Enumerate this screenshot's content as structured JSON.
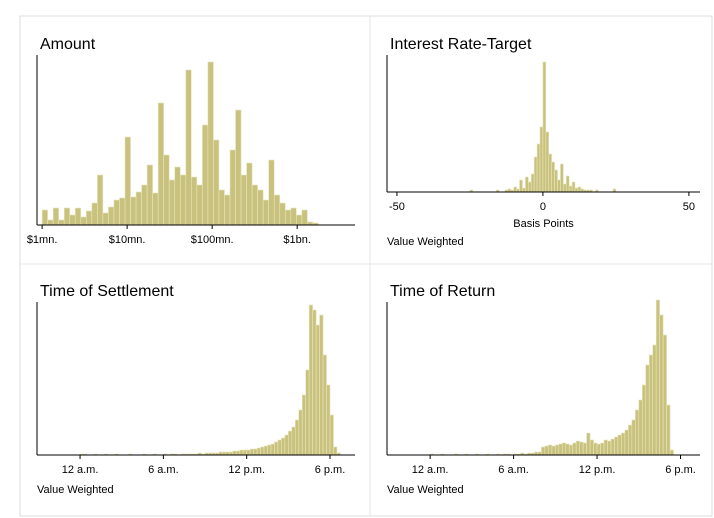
{
  "chart_data": [
    {
      "type": "histogram",
      "title": "Amount",
      "color": "#c9c27e",
      "xlim": [
        5.94,
        9.68
      ],
      "xticks": [
        {
          "value": 6,
          "label": "$1mn."
        },
        {
          "value": 7,
          "label": "$10mn."
        },
        {
          "value": 8,
          "label": "$100mn."
        },
        {
          "value": 9,
          "label": "$1bn."
        }
      ],
      "bins": [
        6.0,
        6.065,
        6.13,
        6.195,
        6.26,
        6.325,
        6.39,
        6.455,
        6.52,
        6.585,
        6.65,
        6.715,
        6.78,
        6.845,
        6.91,
        6.975,
        7.04,
        7.105,
        7.17,
        7.235,
        7.3,
        7.365,
        7.43,
        7.495,
        7.56,
        7.625,
        7.69,
        7.755,
        7.82,
        7.885,
        7.95,
        8.015,
        8.08,
        8.145,
        8.21,
        8.275,
        8.34,
        8.405,
        8.47,
        8.535,
        8.6,
        8.665,
        8.73,
        8.795,
        8.86,
        8.925,
        8.99,
        9.055,
        9.12,
        9.185,
        9.25
      ],
      "values": [
        15,
        5,
        17,
        5,
        17,
        10,
        17,
        8,
        14,
        22,
        50,
        12,
        18,
        25,
        27,
        88,
        28,
        33,
        40,
        60,
        32,
        122,
        70,
        45,
        58,
        50,
        155,
        48,
        40,
        100,
        163,
        85,
        35,
        30,
        75,
        115,
        50,
        62,
        40,
        35,
        25,
        65,
        30,
        22,
        15,
        17,
        10,
        15,
        3,
        2
      ]
    },
    {
      "type": "histogram",
      "title": "Interest Rate-Target",
      "xlabel": "Basis Points",
      "note": "Value Weighted",
      "color": "#c9c27e",
      "xlim": [
        -53.4,
        53.8
      ],
      "xticks": [
        -50,
        0,
        50
      ],
      "bins": [
        -25,
        -24,
        -23,
        -22,
        -21,
        -20,
        -19,
        -18,
        -17,
        -16,
        -15,
        -14,
        -13,
        -12,
        -11,
        -10,
        -9,
        -8,
        -7,
        -6,
        -5,
        -4,
        -3,
        -2,
        -1,
        0,
        1,
        2,
        3,
        4,
        5,
        6,
        7,
        8,
        9,
        10,
        11,
        12,
        13,
        14,
        15,
        16,
        17,
        18,
        19,
        20,
        21,
        22,
        23,
        24,
        25
      ],
      "values": [
        2,
        0,
        0,
        0,
        0,
        0,
        0,
        0,
        0,
        2,
        0,
        0,
        2,
        3,
        2,
        5,
        3,
        12,
        4,
        15,
        10,
        18,
        35,
        48,
        65,
        130,
        60,
        38,
        30,
        22,
        12,
        28,
        8,
        16,
        6,
        10,
        4,
        5,
        3,
        2,
        2,
        2,
        0,
        2,
        0,
        0,
        0,
        0,
        0,
        3
      ]
    },
    {
      "type": "histogram",
      "title": "Time of Settlement",
      "note": "Value Weighted",
      "color": "#c9c27e",
      "xlim": [
        -3.1,
        19.8
      ],
      "xticks": [
        {
          "value": 0,
          "label": "12 a.m."
        },
        {
          "value": 6,
          "label": "6 a.m."
        },
        {
          "value": 12,
          "label": "12 p.m."
        },
        {
          "value": 18,
          "label": "6 p.m."
        }
      ],
      "bins": [
        0,
        0.25,
        0.5,
        0.75,
        1,
        1.25,
        1.5,
        1.75,
        2,
        2.25,
        2.5,
        2.75,
        3,
        3.25,
        3.5,
        3.75,
        4,
        4.25,
        4.5,
        4.75,
        5,
        5.25,
        5.5,
        5.75,
        6,
        6.25,
        6.5,
        6.75,
        7,
        7.25,
        7.5,
        7.75,
        8,
        8.25,
        8.5,
        8.75,
        9,
        9.25,
        9.5,
        9.75,
        10,
        10.25,
        10.5,
        10.75,
        11,
        11.25,
        11.5,
        11.75,
        12,
        12.25,
        12.5,
        12.75,
        13,
        13.25,
        13.5,
        13.75,
        14,
        14.25,
        14.5,
        14.75,
        15,
        15.25,
        15.5,
        15.75,
        16,
        16.25,
        16.5,
        16.75,
        17,
        17.25,
        17.5,
        17.75,
        18,
        18.25,
        18.5,
        18.75,
        19,
        19.25,
        19.5
      ],
      "values": [
        1,
        1,
        0,
        0,
        1,
        0,
        0,
        1,
        0,
        0,
        1,
        0,
        0,
        0,
        1,
        0,
        0,
        0,
        1,
        0,
        0,
        1,
        0,
        0,
        1,
        0,
        1,
        1,
        0,
        1,
        1,
        1,
        1,
        1,
        2,
        1,
        2,
        2,
        2,
        2,
        3,
        3,
        3,
        3,
        4,
        4,
        5,
        5,
        5,
        6,
        6,
        7,
        8,
        9,
        10,
        11,
        13,
        15,
        17,
        20,
        24,
        28,
        35,
        45,
        60,
        85,
        150,
        145,
        130,
        140,
        100,
        70,
        40,
        8,
        2,
        0,
        0,
        0
      ]
    },
    {
      "type": "histogram",
      "title": "Time of Return",
      "note": "Value Weighted",
      "color": "#c9c27e",
      "xlim": [
        -3.1,
        19.4
      ],
      "xticks": [
        {
          "value": 0,
          "label": "12 a.m."
        },
        {
          "value": 6,
          "label": "6 a.m."
        },
        {
          "value": 12,
          "label": "12 p.m."
        },
        {
          "value": 18,
          "label": "6 p.m."
        }
      ],
      "bins": [
        0,
        0.25,
        0.5,
        0.75,
        1,
        1.25,
        1.5,
        1.75,
        2,
        2.25,
        2.5,
        2.75,
        3,
        3.25,
        3.5,
        3.75,
        4,
        4.25,
        4.5,
        4.75,
        5,
        5.25,
        5.5,
        5.75,
        6,
        6.25,
        6.5,
        6.75,
        7,
        7.25,
        7.5,
        7.75,
        8,
        8.25,
        8.5,
        8.75,
        9,
        9.25,
        9.5,
        9.75,
        10,
        10.25,
        10.5,
        10.75,
        11,
        11.25,
        11.5,
        11.75,
        12,
        12.25,
        12.5,
        12.75,
        13,
        13.25,
        13.5,
        13.75,
        14,
        14.25,
        14.5,
        14.75,
        15,
        15.25,
        15.5,
        15.75,
        16,
        16.25,
        16.5,
        16.75,
        17,
        17.25,
        17.5,
        17.75,
        18,
        18.25,
        18.5,
        18.75,
        19,
        19.25,
        19.5
      ],
      "values": [
        1,
        0,
        0,
        1,
        0,
        0,
        0,
        1,
        0,
        0,
        1,
        0,
        0,
        1,
        0,
        0,
        1,
        0,
        0,
        1,
        0,
        1,
        1,
        0,
        1,
        1,
        2,
        1,
        2,
        2,
        3,
        3,
        8,
        9,
        10,
        9,
        10,
        11,
        12,
        11,
        10,
        12,
        14,
        13,
        12,
        22,
        15,
        12,
        11,
        12,
        15,
        14,
        16,
        18,
        20,
        22,
        25,
        30,
        35,
        45,
        55,
        70,
        90,
        100,
        110,
        155,
        140,
        120,
        50,
        5,
        0,
        0,
        0,
        0,
        0,
        0,
        0,
        0
      ]
    }
  ]
}
